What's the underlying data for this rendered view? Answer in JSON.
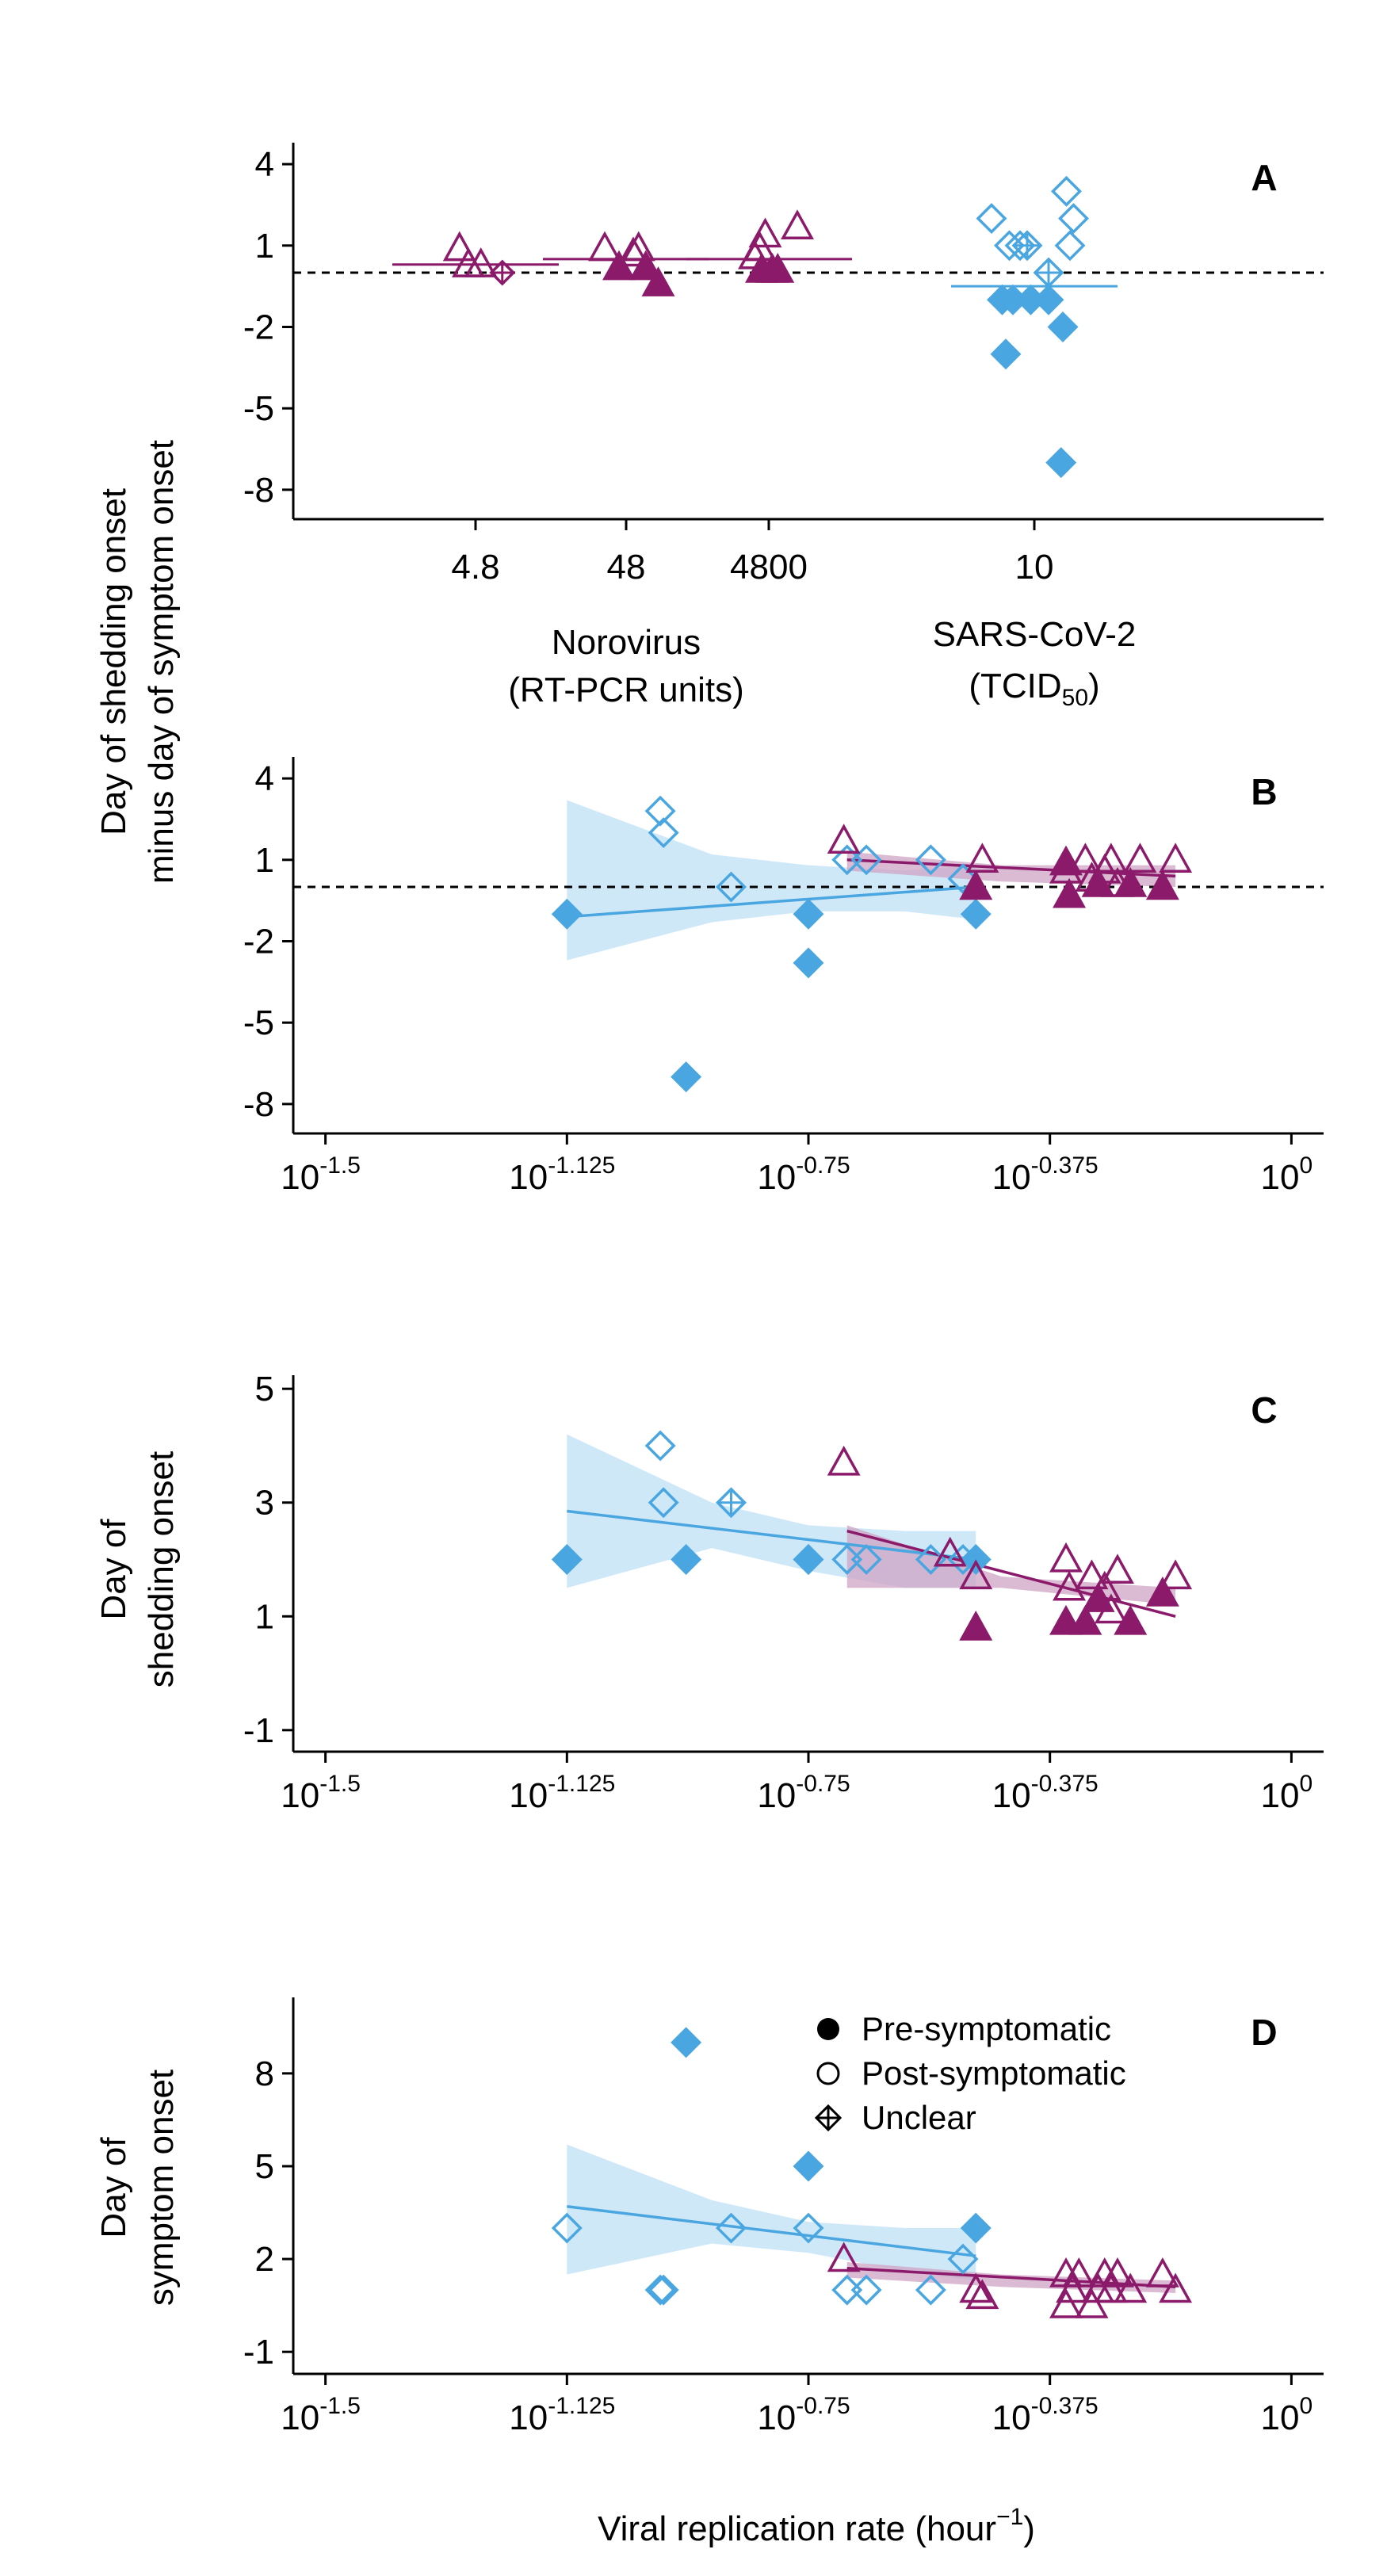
{
  "colors": {
    "norovirus": "#8B1A6B",
    "sars": "#4AA6E0",
    "sars_band": "#BFE0F5",
    "noro_band": "#CFA4C6"
  },
  "shared": {
    "ylabel_AB": [
      "Day of shedding onset",
      "minus day of symptom onset"
    ],
    "xlabel": "Viral replication rate (hour",
    "xlabel_sup": "−1",
    "xlabel_end": ")",
    "x_ticks": [
      {
        "base": "10",
        "exp": "-1.5"
      },
      {
        "base": "10",
        "exp": "-1.125"
      },
      {
        "base": "10",
        "exp": "-0.75"
      },
      {
        "base": "10",
        "exp": "-0.375"
      },
      {
        "base": "10",
        "exp": "0"
      }
    ]
  },
  "legend": {
    "items": [
      "Pre-symptomatic",
      "Post-symptomatic",
      "Unclear"
    ]
  },
  "chart_data": [
    {
      "panel": "A",
      "type": "scatter",
      "y_ticks": [
        "4",
        "1",
        "-2",
        "-5",
        "-8"
      ],
      "ylim": [
        -8.5,
        4.5
      ],
      "reference_line_y": 0,
      "noro_group_label": [
        "Norovirus",
        "(RT-PCR units)"
      ],
      "sars_group_label": [
        "SARS-CoV-2",
        "(TCID",
        "50",
        ")"
      ],
      "x_categories": [
        "4.8",
        "48",
        "4800",
        "10"
      ],
      "groups": [
        {
          "category": "4.8",
          "virus": "norovirus",
          "mean": 0.3,
          "points": [
            {
              "dx": -0.45,
              "y": 0.9,
              "s": "post"
            },
            {
              "dx": -0.2,
              "y": 0.3,
              "s": "post"
            },
            {
              "dx": 0.15,
              "y": 0.3,
              "s": "post"
            },
            {
              "dx": 0.75,
              "y": 0.0,
              "s": "unclear"
            }
          ]
        },
        {
          "category": "48",
          "virus": "norovirus",
          "mean": 0.5,
          "points": [
            {
              "dx": -0.6,
              "y": 0.9,
              "s": "post"
            },
            {
              "dx": -0.2,
              "y": 0.2,
              "s": "pre"
            },
            {
              "dx": 0.2,
              "y": 0.7,
              "s": "post"
            },
            {
              "dx": 0.35,
              "y": 0.9,
              "s": "post"
            },
            {
              "dx": 0.55,
              "y": 0.2,
              "s": "pre"
            },
            {
              "dx": 0.9,
              "y": -0.4,
              "s": "pre"
            }
          ]
        },
        {
          "category": "4800",
          "virus": "norovirus",
          "mean": 0.5,
          "points": [
            {
              "dx": -0.4,
              "y": 0.6,
              "s": "post"
            },
            {
              "dx": -0.25,
              "y": 0.9,
              "s": "post"
            },
            {
              "dx": -0.1,
              "y": 1.4,
              "s": "post"
            },
            {
              "dx": -0.2,
              "y": 0.1,
              "s": "pre"
            },
            {
              "dx": 0.1,
              "y": 0.1,
              "s": "pre"
            },
            {
              "dx": 0.25,
              "y": 0.1,
              "s": "pre"
            },
            {
              "dx": 0.8,
              "y": 1.7,
              "s": "post"
            }
          ]
        },
        {
          "category": "10",
          "virus": "sars",
          "mean": -0.5,
          "points": [
            {
              "dx": -1.2,
              "y": 2.0,
              "s": "post"
            },
            {
              "dx": -0.7,
              "y": 1.0,
              "s": "post"
            },
            {
              "dx": -0.4,
              "y": 1.0,
              "s": "post"
            },
            {
              "dx": -0.2,
              "y": 1.0,
              "s": "unclear"
            },
            {
              "dx": 0.4,
              "y": 0.0,
              "s": "unclear"
            },
            {
              "dx": 0.9,
              "y": 3.0,
              "s": "post"
            },
            {
              "dx": 1.1,
              "y": 2.0,
              "s": "post"
            },
            {
              "dx": 1.0,
              "y": 1.0,
              "s": "post"
            },
            {
              "dx": -0.9,
              "y": -1.0,
              "s": "pre"
            },
            {
              "dx": -0.6,
              "y": -1.0,
              "s": "pre"
            },
            {
              "dx": -0.1,
              "y": -1.0,
              "s": "pre"
            },
            {
              "dx": 0.4,
              "y": -1.0,
              "s": "pre"
            },
            {
              "dx": -0.8,
              "y": -3.0,
              "s": "pre"
            },
            {
              "dx": 0.8,
              "y": -2.0,
              "s": "pre"
            },
            {
              "dx": 0.75,
              "y": -7.0,
              "s": "pre"
            }
          ]
        }
      ]
    },
    {
      "panel": "B",
      "type": "scatter",
      "y_ticks": [
        "4",
        "1",
        "-2",
        "-5",
        "-8"
      ],
      "ylim": [
        -8.5,
        4.5
      ],
      "xlim": [
        -1.55,
        0.05
      ],
      "reference_line_y": 0,
      "sars_points": [
        {
          "x": -1.125,
          "y": -1.0,
          "s": "pre"
        },
        {
          "x": -0.98,
          "y": 2.8,
          "s": "post"
        },
        {
          "x": -0.975,
          "y": 2.0,
          "s": "post"
        },
        {
          "x": -0.94,
          "y": -7.0,
          "s": "pre"
        },
        {
          "x": -0.87,
          "y": 0.0,
          "s": "post"
        },
        {
          "x": -0.75,
          "y": -1.0,
          "s": "pre"
        },
        {
          "x": -0.75,
          "y": -2.8,
          "s": "pre"
        },
        {
          "x": -0.69,
          "y": 1.0,
          "s": "post"
        },
        {
          "x": -0.66,
          "y": 1.0,
          "s": "post"
        },
        {
          "x": -0.56,
          "y": 1.0,
          "s": "post"
        },
        {
          "x": -0.51,
          "y": 0.3,
          "s": "post"
        },
        {
          "x": -0.49,
          "y": -1.0,
          "s": "pre"
        }
      ],
      "noro_points": [
        {
          "x": -0.695,
          "y": 1.7,
          "s": "post"
        },
        {
          "x": -0.48,
          "y": 1.0,
          "s": "post"
        },
        {
          "x": -0.49,
          "y": 0.0,
          "s": "pre"
        },
        {
          "x": -0.35,
          "y": 0.6,
          "s": "post"
        },
        {
          "x": -0.35,
          "y": 0.9,
          "s": "pre"
        },
        {
          "x": -0.345,
          "y": -0.3,
          "s": "pre"
        },
        {
          "x": -0.32,
          "y": 1.0,
          "s": "post"
        },
        {
          "x": -0.31,
          "y": 0.3,
          "s": "post"
        },
        {
          "x": -0.3,
          "y": 0.1,
          "s": "pre"
        },
        {
          "x": -0.29,
          "y": 0.6,
          "s": "post"
        },
        {
          "x": -0.28,
          "y": 1.0,
          "s": "post"
        },
        {
          "x": -0.27,
          "y": 0.1,
          "s": "post"
        },
        {
          "x": -0.25,
          "y": 0.1,
          "s": "pre"
        },
        {
          "x": -0.235,
          "y": 1.0,
          "s": "post"
        },
        {
          "x": -0.2,
          "y": 0.0,
          "s": "pre"
        },
        {
          "x": -0.18,
          "y": 1.0,
          "s": "post"
        }
      ],
      "sars_fit": {
        "x": [
          -1.125,
          -0.49
        ],
        "y": [
          -1.1,
          0.0
        ]
      },
      "sars_band": {
        "x": [
          -1.125,
          -0.9,
          -0.75,
          -0.6,
          -0.49
        ],
        "upper": [
          3.2,
          1.2,
          0.8,
          0.6,
          0.8
        ],
        "lower": [
          -2.7,
          -1.3,
          -0.9,
          -0.9,
          -1.2
        ]
      },
      "noro_fit": {
        "x": [
          -0.69,
          -0.18
        ],
        "y": [
          1.0,
          0.4
        ]
      },
      "noro_band": {
        "x": [
          -0.69,
          -0.45,
          -0.18
        ],
        "upper": [
          1.3,
          0.8,
          0.8
        ],
        "lower": [
          0.6,
          0.2,
          0.0
        ]
      }
    },
    {
      "panel": "C",
      "type": "scatter",
      "y_ticks": [
        "5",
        "3",
        "1",
        "-1"
      ],
      "ylim": [
        -1.1,
        5.1
      ],
      "xlim": [
        -1.55,
        0.05
      ],
      "sars_points": [
        {
          "x": -1.125,
          "y": 2.0,
          "s": "pre"
        },
        {
          "x": -0.98,
          "y": 4.0,
          "s": "post"
        },
        {
          "x": -0.975,
          "y": 3.0,
          "s": "post"
        },
        {
          "x": -0.94,
          "y": 2.0,
          "s": "pre"
        },
        {
          "x": -0.87,
          "y": 3.0,
          "s": "unclear"
        },
        {
          "x": -0.75,
          "y": 2.0,
          "s": "pre"
        },
        {
          "x": -0.75,
          "y": 2.0,
          "s": "pre"
        },
        {
          "x": -0.69,
          "y": 2.0,
          "s": "post"
        },
        {
          "x": -0.66,
          "y": 2.0,
          "s": "post"
        },
        {
          "x": -0.56,
          "y": 2.0,
          "s": "post"
        },
        {
          "x": -0.51,
          "y": 2.0,
          "s": "post"
        },
        {
          "x": -0.49,
          "y": 2.0,
          "s": "pre"
        }
      ],
      "noro_points": [
        {
          "x": -0.695,
          "y": 3.7,
          "s": "post"
        },
        {
          "x": -0.53,
          "y": 2.1,
          "s": "post"
        },
        {
          "x": -0.49,
          "y": 1.7,
          "s": "post"
        },
        {
          "x": -0.49,
          "y": 0.8,
          "s": "pre"
        },
        {
          "x": -0.35,
          "y": 2.0,
          "s": "post"
        },
        {
          "x": -0.35,
          "y": 0.9,
          "s": "pre"
        },
        {
          "x": -0.345,
          "y": 1.5,
          "s": "post"
        },
        {
          "x": -0.32,
          "y": 0.9,
          "s": "pre"
        },
        {
          "x": -0.31,
          "y": 1.7,
          "s": "post"
        },
        {
          "x": -0.3,
          "y": 1.3,
          "s": "pre"
        },
        {
          "x": -0.29,
          "y": 1.5,
          "s": "post"
        },
        {
          "x": -0.28,
          "y": 1.1,
          "s": "post"
        },
        {
          "x": -0.27,
          "y": 1.8,
          "s": "post"
        },
        {
          "x": -0.25,
          "y": 0.9,
          "s": "pre"
        },
        {
          "x": -0.2,
          "y": 1.4,
          "s": "pre"
        },
        {
          "x": -0.18,
          "y": 1.7,
          "s": "post"
        }
      ],
      "sars_fit": {
        "x": [
          -1.125,
          -0.49
        ],
        "y": [
          2.85,
          2.0
        ]
      },
      "sars_band": {
        "x": [
          -1.125,
          -0.9,
          -0.75,
          -0.6,
          -0.49
        ],
        "upper": [
          4.2,
          3.0,
          2.6,
          2.5,
          2.5
        ],
        "lower": [
          1.5,
          2.2,
          1.8,
          1.5,
          1.5
        ]
      },
      "noro_fit": {
        "x": [
          -0.69,
          -0.18
        ],
        "y": [
          2.5,
          1.0
        ]
      },
      "noro_band": {
        "x": [
          -0.69,
          -0.45,
          -0.18
        ],
        "upper": [
          2.6,
          1.7,
          1.5
        ],
        "lower": [
          1.5,
          1.5,
          1.2
        ]
      }
    },
    {
      "panel": "D",
      "type": "scatter",
      "y_ticks": [
        "8",
        "5",
        "2",
        "-1"
      ],
      "ylim": [
        -1.2,
        10.2
      ],
      "xlim": [
        -1.55,
        0.05
      ],
      "sars_points": [
        {
          "x": -1.125,
          "y": 3.0,
          "s": "post"
        },
        {
          "x": -0.98,
          "y": 1.0,
          "s": "post"
        },
        {
          "x": -0.975,
          "y": 1.0,
          "s": "post"
        },
        {
          "x": -0.94,
          "y": 9.0,
          "s": "pre"
        },
        {
          "x": -0.87,
          "y": 3.0,
          "s": "post"
        },
        {
          "x": -0.75,
          "y": 5.0,
          "s": "pre"
        },
        {
          "x": -0.75,
          "y": 3.0,
          "s": "post"
        },
        {
          "x": -0.69,
          "y": 1.0,
          "s": "post"
        },
        {
          "x": -0.66,
          "y": 1.0,
          "s": "post"
        },
        {
          "x": -0.56,
          "y": 1.0,
          "s": "post"
        },
        {
          "x": -0.51,
          "y": 2.0,
          "s": "post"
        },
        {
          "x": -0.49,
          "y": 3.0,
          "s": "pre"
        }
      ],
      "noro_points": [
        {
          "x": -0.695,
          "y": 2.0,
          "s": "post"
        },
        {
          "x": -0.49,
          "y": 1.0,
          "s": "post"
        },
        {
          "x": -0.48,
          "y": 0.8,
          "s": "post"
        },
        {
          "x": -0.35,
          "y": 1.5,
          "s": "post"
        },
        {
          "x": -0.35,
          "y": 0.5,
          "s": "post"
        },
        {
          "x": -0.34,
          "y": 1.0,
          "s": "post"
        },
        {
          "x": -0.33,
          "y": 1.5,
          "s": "post"
        },
        {
          "x": -0.31,
          "y": 0.5,
          "s": "post"
        },
        {
          "x": -0.3,
          "y": 1.0,
          "s": "post"
        },
        {
          "x": -0.29,
          "y": 1.5,
          "s": "post"
        },
        {
          "x": -0.28,
          "y": 1.0,
          "s": "post"
        },
        {
          "x": -0.27,
          "y": 1.5,
          "s": "post"
        },
        {
          "x": -0.25,
          "y": 1.0,
          "s": "post"
        },
        {
          "x": -0.2,
          "y": 1.5,
          "s": "post"
        },
        {
          "x": -0.18,
          "y": 1.0,
          "s": "post"
        }
      ],
      "sars_fit": {
        "x": [
          -1.125,
          -0.49
        ],
        "y": [
          3.7,
          2.1
        ]
      },
      "sars_band": {
        "x": [
          -1.125,
          -0.9,
          -0.75,
          -0.6,
          -0.49
        ],
        "upper": [
          5.7,
          3.9,
          3.2,
          3.0,
          3.0
        ],
        "lower": [
          1.5,
          2.5,
          2.2,
          1.6,
          1.3
        ]
      },
      "noro_fit": {
        "x": [
          -0.69,
          -0.18
        ],
        "y": [
          1.7,
          1.1
        ]
      },
      "noro_band": {
        "x": [
          -0.69,
          -0.45,
          -0.18
        ],
        "upper": [
          1.9,
          1.5,
          1.3
        ],
        "lower": [
          1.4,
          1.1,
          0.9
        ]
      }
    }
  ]
}
